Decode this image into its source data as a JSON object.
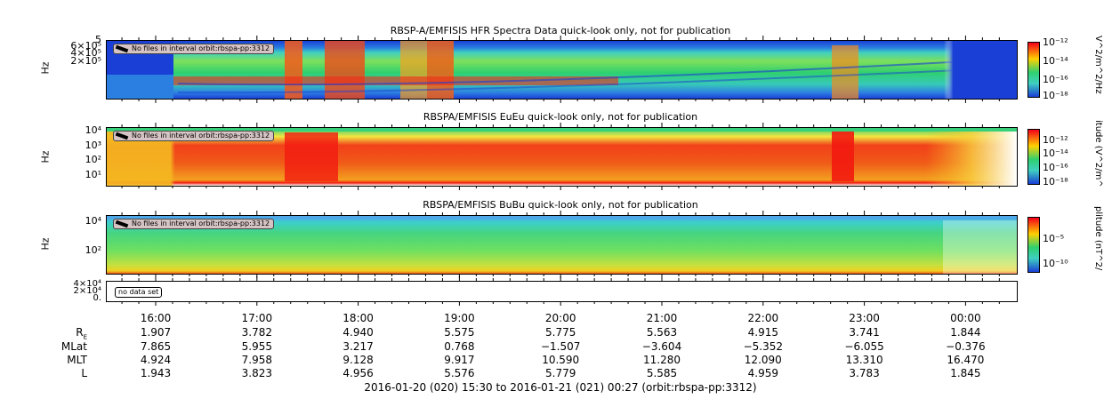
{
  "chart_data": [
    {
      "type": "heatmap",
      "title": "RBSP-A/EMFISIS  HFR Spectra Data quick-look only, not for publication",
      "ylabel": "Hz",
      "ytick_labels": [
        "5",
        "6×10⁵",
        "4×10⁵",
        "2×10⁵"
      ],
      "colorbar_label": "V^2/m^2/Hz",
      "colorbar_ticks": [
        "10⁻¹²",
        "10⁻¹⁴",
        "10⁻¹⁶",
        "10⁻¹⁸"
      ],
      "notice": "No files in interval orbit:rbspa-pp:3312"
    },
    {
      "type": "heatmap",
      "title": "RBSPA/EMFISIS  EuEu quick-look only, not for publication",
      "ylabel": "Hz",
      "ytick_labels": [
        "10⁴",
        "10³",
        "10²",
        "10¹"
      ],
      "colorbar_label": "itude (V^2/m^",
      "colorbar_ticks": [
        "10⁻¹²",
        "10⁻¹⁴",
        "10⁻¹⁶",
        "10⁻¹⁸"
      ],
      "notice": "No files in interval orbit:rbspa-pp:3312"
    },
    {
      "type": "heatmap",
      "title": "RBSPA/EMFISIS  BuBu quick-look only, not for publication",
      "ylabel": "Hz",
      "ytick_labels": [
        "10⁴",
        "10²"
      ],
      "colorbar_label": "plitude (nT^2/",
      "colorbar_ticks": [
        "10⁻⁵",
        "10⁻¹⁰"
      ],
      "notice": "No files in interval orbit:rbspa-pp:3312"
    },
    {
      "type": "line",
      "ytick_labels": [
        "4×10⁴",
        "2×10⁴",
        "0."
      ],
      "notice": "no data set"
    }
  ],
  "time_axis": {
    "ticks": [
      "16:00",
      "17:00",
      "18:00",
      "19:00",
      "20:00",
      "21:00",
      "22:00",
      "23:00",
      "00:00"
    ]
  },
  "ephemeris": {
    "rows": [
      {
        "label": "R",
        "sub": "E",
        "values": [
          "1.907",
          "3.782",
          "4.940",
          "5.575",
          "5.775",
          "5.563",
          "4.915",
          "3.741",
          "1.844"
        ]
      },
      {
        "label": "MLat",
        "sub": "",
        "values": [
          "7.865",
          "5.955",
          "3.217",
          "0.768",
          "−1.507",
          "−3.604",
          "−5.352",
          "−6.055",
          "−0.376"
        ]
      },
      {
        "label": "MLT",
        "sub": "",
        "values": [
          "4.924",
          "7.958",
          "9.128",
          "9.917",
          "10.590",
          "11.280",
          "12.090",
          "13.310",
          "16.470"
        ]
      },
      {
        "label": "L",
        "sub": "",
        "values": [
          "1.943",
          "3.823",
          "4.956",
          "5.576",
          "5.779",
          "5.585",
          "4.959",
          "3.783",
          "1.845"
        ]
      }
    ]
  },
  "footer": "2016-01-20 (020) 15:30 to 2016-01-21 (021) 00:27 (orbit:rbspa-pp:3312)"
}
